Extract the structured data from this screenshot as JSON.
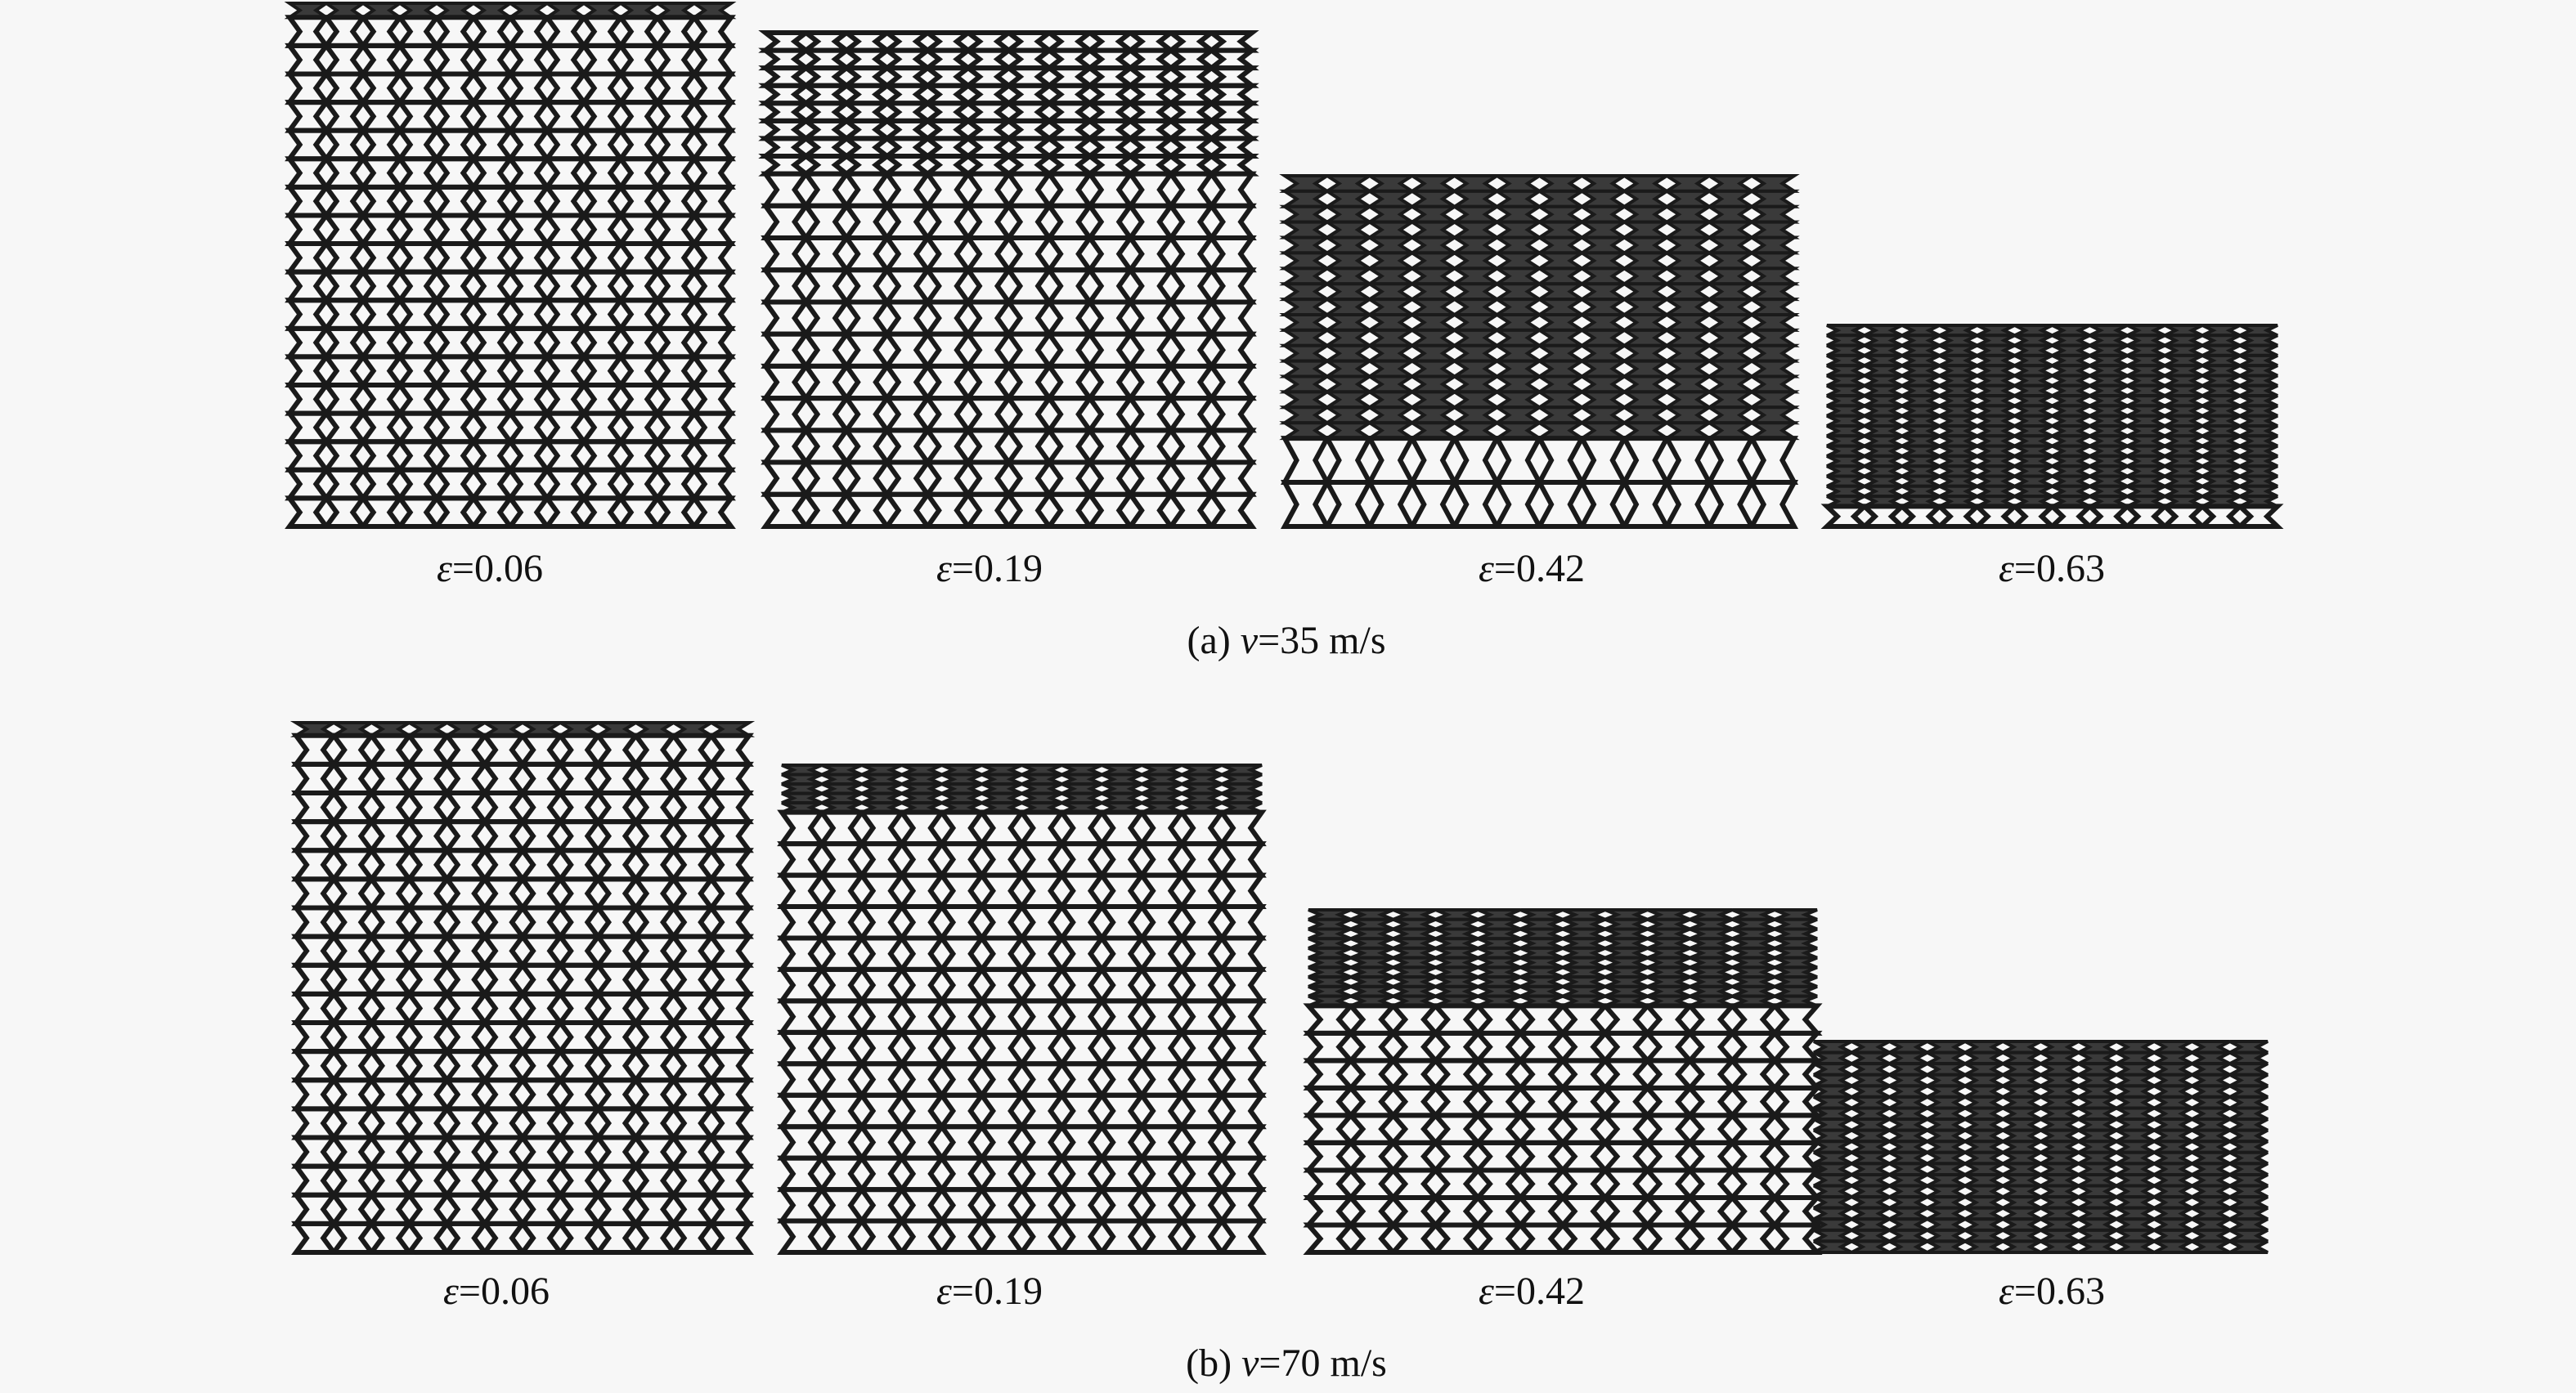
{
  "figure": {
    "rows": [
      {
        "caption_prefix": "(a) ",
        "caption_var": "v",
        "caption_value": "=35 m/s",
        "panels": [
          {
            "symbol": "ε",
            "value": "=0.06"
          },
          {
            "symbol": "ε",
            "value": "=0.19"
          },
          {
            "symbol": "ε",
            "value": "=0.42"
          },
          {
            "symbol": "ε",
            "value": "=0.63"
          }
        ]
      },
      {
        "caption_prefix": "(b) ",
        "caption_var": "v",
        "caption_value": "=70 m/s",
        "panels": [
          {
            "symbol": "ε",
            "value": "=0.06"
          },
          {
            "symbol": "ε",
            "value": "=0.19"
          },
          {
            "symbol": "ε",
            "value": "=0.42"
          },
          {
            "symbol": "ε",
            "value": "=0.63"
          }
        ]
      }
    ],
    "colors": {
      "background": "#f7f7f7",
      "lattice": "#1a1a1a"
    }
  }
}
